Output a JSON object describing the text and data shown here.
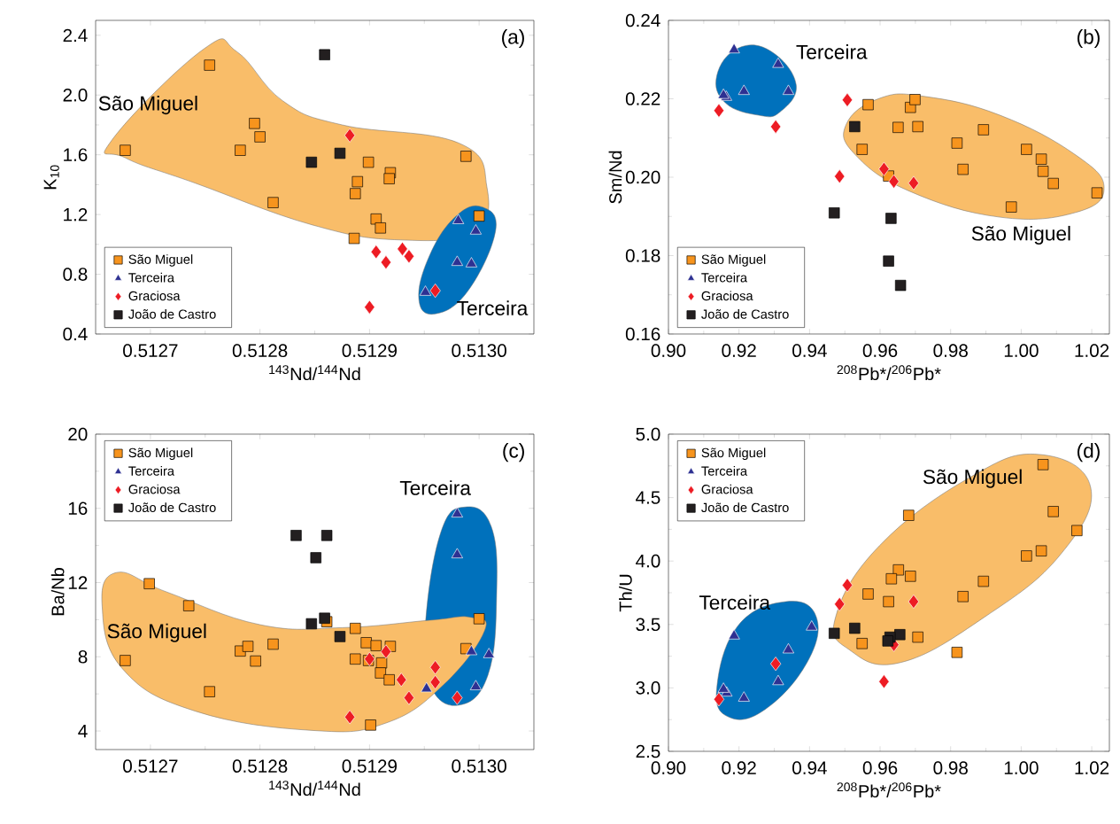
{
  "chart_data": [
    {
      "type": "scatter",
      "xlabel": "$^{143}$Nd/$^{144}$Nd",
      "ylabel": "K$_{10}$",
      "xlim": [
        0.51265,
        0.51305
      ],
      "ylim": [
        0.4,
        2.5
      ],
      "xticks": [
        0.5127,
        0.5128,
        0.5129,
        {
          "value": 0.513,
          "label": "0.5130"
        }
      ],
      "yticks": [
        0.4,
        0.8,
        1.2,
        1.6,
        {
          "value": 2,
          "label": "2.0"
        },
        2.4
      ],
      "grid": false,
      "legend": "bottom left",
      "series": [
        {
          "name": "São Miguel",
          "color": "#f7941d",
          "marker": "square",
          "x": [
            0.512677,
            0.512754,
            0.512795,
            0.5128,
            0.512782,
            0.512812,
            0.512899,
            0.512919,
            0.512918,
            0.512889,
            0.512887,
            0.512906,
            0.51291,
            0.512886,
            0.512988,
            0.513
          ],
          "values": [
            1.63,
            2.2,
            1.81,
            1.72,
            1.63,
            1.28,
            1.55,
            1.48,
            1.44,
            1.42,
            1.34,
            1.17,
            1.11,
            1.04,
            1.59,
            1.19
          ]
        },
        {
          "name": "Terceira",
          "color": "#2e3192",
          "marker": "triangle",
          "x": [
            0.512981,
            0.512997,
            0.51298,
            0.512993,
            0.512951
          ],
          "values": [
            1.16,
            1.09,
            0.88,
            0.87,
            0.68
          ]
        },
        {
          "name": "Graciosa",
          "color": "#ed1c24",
          "marker": "diamond",
          "x": [
            0.512882,
            0.512906,
            0.512915,
            0.51293,
            0.512936,
            0.51296,
            0.5129
          ],
          "values": [
            1.73,
            0.95,
            0.88,
            0.97,
            0.92,
            0.69,
            0.58
          ]
        },
        {
          "name": "João de Castro",
          "color": "#231f20",
          "marker": "square",
          "x": [
            0.512859,
            0.512873,
            0.512847
          ],
          "values": [
            2.27,
            1.61,
            1.55
          ]
        }
      ],
      "annotations": [
        "(a)",
        "São Miguel",
        "Terceira"
      ]
    },
    {
      "type": "scatter",
      "xlabel": "$^{208}$Pb*/$^{206}$Pb*",
      "ylabel": "Sm/Nd",
      "xlim": [
        0.9,
        1.025
      ],
      "ylim": [
        0.16,
        0.24
      ],
      "xticks": [
        {
          "value": 0.9,
          "label": "0.90"
        },
        0.92,
        0.94,
        0.96,
        0.98,
        {
          "value": 1,
          "label": "1.00"
        },
        1.02
      ],
      "yticks": [
        0.16,
        0.18,
        {
          "value": 0.2,
          "label": "0.20"
        },
        0.22,
        0.24
      ],
      "grid": false,
      "legend": "bottom left",
      "series": [
        {
          "name": "São Miguel",
          "color": "#f7941d",
          "marker": "square",
          "x": [
            0.9566,
            0.9549,
            0.9651,
            0.9707,
            0.9686,
            0.9699,
            0.9818,
            0.9835,
            0.9893,
            1.0015,
            1.0057,
            1.0062,
            1.0091,
            0.9972,
            1.0215,
            0.9624
          ],
          "values": [
            0.2185,
            0.2071,
            0.2127,
            0.2129,
            0.2178,
            0.2198,
            0.2087,
            0.202,
            0.2121,
            0.2071,
            0.2046,
            0.2015,
            0.1984,
            0.1924,
            0.196,
            0.2003
          ]
        },
        {
          "name": "Terceira",
          "color": "#2e3192",
          "marker": "triangle",
          "x": [
            0.9186,
            0.9311,
            0.934,
            0.9214,
            0.9164,
            0.9156
          ],
          "values": [
            0.2325,
            0.2288,
            0.2219,
            0.2219,
            0.2204,
            0.2209
          ]
        },
        {
          "name": "Graciosa",
          "color": "#ed1c24",
          "marker": "diamond",
          "x": [
            0.9143,
            0.9304,
            0.9507,
            0.9485,
            0.9611,
            0.9639,
            0.9695
          ],
          "values": [
            0.217,
            0.2129,
            0.2197,
            0.2002,
            0.2021,
            0.1989,
            0.1985
          ]
        },
        {
          "name": "João de Castro",
          "color": "#231f20",
          "marker": "square",
          "x": [
            0.9528,
            0.947,
            0.9631,
            0.9624,
            0.9658
          ],
          "values": [
            0.2129,
            0.1909,
            0.1895,
            0.1786,
            0.1724
          ]
        }
      ],
      "annotations": [
        "(b)",
        "Terceira",
        "São Miguel"
      ]
    },
    {
      "type": "scatter",
      "xlabel": "$^{143}$Nd/$^{144}$Nd",
      "ylabel": "Ba/Nb",
      "xlim": [
        0.51265,
        0.51305
      ],
      "ylim": [
        3,
        20
      ],
      "xticks": [
        0.5127,
        0.5128,
        0.5129,
        {
          "value": 0.513,
          "label": "0.5130"
        }
      ],
      "yticks": [
        4,
        8,
        12,
        16,
        20
      ],
      "grid": false,
      "legend": "top left",
      "series": [
        {
          "name": "São Miguel",
          "color": "#f7941d",
          "marker": "square",
          "x": [
            0.512677,
            0.512699,
            0.512735,
            0.512754,
            0.512782,
            0.512789,
            0.512796,
            0.512812,
            0.512861,
            0.512887,
            0.512897,
            0.512906,
            0.512919,
            0.512887,
            0.512899,
            0.512911,
            0.51291,
            0.512918,
            0.512901,
            0.513,
            0.512988
          ],
          "values": [
            7.8,
            11.94,
            10.75,
            6.12,
            8.31,
            8.56,
            7.77,
            8.68,
            9.89,
            9.53,
            8.76,
            8.6,
            8.56,
            7.88,
            7.8,
            7.67,
            7.13,
            6.76,
            4.32,
            10.05,
            8.44
          ]
        },
        {
          "name": "Terceira",
          "color": "#2e3192",
          "marker": "triangle",
          "x": [
            0.51298,
            0.51298,
            0.512993,
            0.513009,
            0.512997,
            0.512952
          ],
          "values": [
            15.7,
            13.5,
            8.28,
            8.12,
            6.39,
            6.28
          ]
        },
        {
          "name": "Graciosa",
          "color": "#ed1c24",
          "marker": "diamond",
          "x": [
            0.512882,
            0.5129,
            0.512915,
            0.512929,
            0.512936,
            0.51296,
            0.51296,
            0.51298
          ],
          "values": [
            4.75,
            7.88,
            8.28,
            6.76,
            5.79,
            7.43,
            6.63,
            5.79
          ]
        },
        {
          "name": "João de Castro",
          "color": "#231f20",
          "marker": "square",
          "x": [
            0.512833,
            0.512861,
            0.512851,
            0.512847,
            0.512859,
            0.512873
          ],
          "values": [
            14.54,
            14.54,
            13.34,
            9.78,
            10.08,
            9.09
          ]
        }
      ],
      "annotations": [
        "(c)",
        "Terceira",
        "São Miguel"
      ]
    },
    {
      "type": "scatter",
      "xlabel": "$^{208}$Pb*/$^{206}$Pb*",
      "ylabel": "Th/U",
      "xlim": [
        0.9,
        1.025
      ],
      "ylim": [
        2.5,
        5
      ],
      "xticks": [
        {
          "value": 0.9,
          "label": "0.90"
        },
        0.92,
        0.94,
        0.96,
        0.98,
        {
          "value": 1,
          "label": "1.00"
        },
        1.02
      ],
      "yticks": [
        2.5,
        {
          "value": 3,
          "label": "3.0"
        },
        3.5,
        {
          "value": 4,
          "label": "4.0"
        },
        4.5,
        {
          "value": 5,
          "label": "5.0"
        }
      ],
      "grid": false,
      "legend": "top left",
      "series": [
        {
          "name": "São Miguel",
          "color": "#f7941d",
          "marker": "square",
          "x": [
            1.0062,
            1.0091,
            1.0158,
            1.0015,
            1.0057,
            0.9681,
            0.9652,
            0.9632,
            0.9686,
            0.9893,
            0.9566,
            0.9835,
            0.9624,
            0.9549,
            0.9707,
            0.9818
          ],
          "values": [
            4.76,
            4.39,
            4.24,
            4.04,
            4.08,
            4.36,
            3.93,
            3.86,
            3.88,
            3.84,
            3.74,
            3.72,
            3.68,
            3.35,
            3.4,
            3.28
          ]
        },
        {
          "name": "Terceira",
          "color": "#2e3192",
          "marker": "triangle",
          "x": [
            0.9406,
            0.9186,
            0.934,
            0.9311,
            0.9214,
            0.9165,
            0.9156
          ],
          "values": [
            3.48,
            3.41,
            3.3,
            3.05,
            2.92,
            2.96,
            2.99
          ]
        },
        {
          "name": "Graciosa",
          "color": "#ed1c24",
          "marker": "diamond",
          "x": [
            0.9507,
            0.9485,
            0.9695,
            0.9639,
            0.9304,
            0.9611,
            0.9143
          ],
          "values": [
            3.81,
            3.66,
            3.68,
            3.34,
            3.19,
            3.05,
            2.91
          ]
        },
        {
          "name": "João de Castro",
          "color": "#231f20",
          "marker": "square",
          "x": [
            0.947,
            0.9528,
            0.9656,
            0.9628,
            0.9622
          ],
          "values": [
            3.43,
            3.47,
            3.42,
            3.4,
            3.37
          ]
        }
      ],
      "annotations": [
        "(d)",
        "São Miguel",
        "Terceira"
      ]
    }
  ]
}
